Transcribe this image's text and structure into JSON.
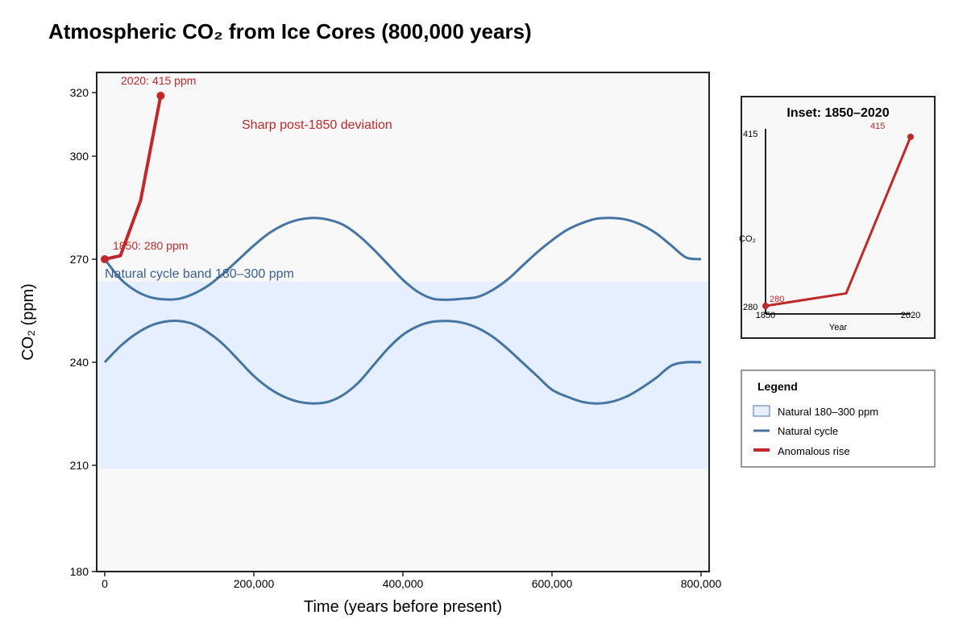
{
  "title": "Atmospheric CO₂ from Ice Cores (800,000 years)",
  "colors": {
    "band_fill": "#e6efff",
    "natural": "#4575a5",
    "anomaly": "#c0282a",
    "plot_bg": "#f8f8f8"
  },
  "chart_data": [
    {
      "type": "line",
      "xlabel": "Time (years before present)",
      "ylabel": "CO₂ (ppm)",
      "xlim": [
        0,
        800000
      ],
      "ylim": [
        180,
        325
      ],
      "x_ticks": [
        0,
        200000,
        400000,
        600000,
        800000
      ],
      "x_tick_labels": [
        "0",
        "200,000",
        "400,000",
        "600,000",
        "800,000"
      ],
      "y_ticks": [
        180,
        210,
        240,
        270,
        300,
        320
      ],
      "y_tick_labels": [
        "180",
        "210",
        "240",
        "270",
        "300",
        "320"
      ],
      "grid": false,
      "band": {
        "y0": 209,
        "y1": 263.5
      },
      "series": [
        {
          "x": [
            0,
            20000,
            40000,
            60000,
            80000,
            100000,
            120000,
            140000,
            160000,
            180000,
            200000,
            220000,
            240000,
            260000,
            280000,
            300000,
            320000,
            340000,
            360000,
            380000,
            400000,
            420000,
            440000,
            460000,
            480000,
            500000,
            520000,
            540000,
            560000,
            580000,
            600000,
            620000,
            640000,
            660000,
            680000,
            700000,
            720000,
            740000,
            760000,
            780000,
            800000
          ],
          "values": [
            270,
            264.5,
            261,
            259,
            258.3,
            258.5,
            260,
            262.5,
            266,
            270,
            274,
            277.5,
            280,
            281.5,
            282,
            281.5,
            280,
            277,
            273,
            268.5,
            264,
            260.5,
            258.5,
            258.2,
            258.5,
            259,
            261,
            264,
            268,
            272,
            275.5,
            278.5,
            280.5,
            281.8,
            282,
            281.5,
            280,
            277.5,
            274,
            270.5,
            270
          ]
        },
        {
          "x": [
            0,
            20000,
            40000,
            60000,
            80000,
            100000,
            120000,
            140000,
            160000,
            180000,
            200000,
            220000,
            240000,
            260000,
            280000,
            300000,
            320000,
            340000,
            360000,
            380000,
            400000,
            420000,
            440000,
            460000,
            480000,
            500000,
            520000,
            540000,
            560000,
            580000,
            600000,
            620000,
            640000,
            660000,
            680000,
            700000,
            720000,
            740000,
            760000,
            780000,
            800000
          ],
          "values": [
            240,
            244.5,
            248,
            250.5,
            251.8,
            252,
            251,
            248.5,
            245,
            240.5,
            236,
            232.5,
            230,
            228.5,
            228,
            228.5,
            230.5,
            234,
            239,
            244,
            248,
            250.5,
            251.8,
            252,
            251.5,
            250,
            247.5,
            244,
            240,
            236,
            232,
            230,
            228.5,
            228,
            228.5,
            230,
            232.5,
            235.5,
            239,
            240,
            240
          ]
        },
        {
          "x": [
            0,
            21000,
            48000,
            75000
          ],
          "values": [
            270,
            271,
            287,
            319
          ]
        }
      ],
      "annotations": [
        {
          "text": "2020: 415 ppm"
        },
        {
          "text": "1850: 280 ppm"
        },
        {
          "text": "Sharp post-1850 deviation"
        },
        {
          "text": "Natural cycle band 180–300 ppm"
        }
      ]
    },
    {
      "type": "line",
      "title": "Inset: 1850–2020",
      "xlabel": "Year",
      "ylabel": "CO₂",
      "xlim": [
        1850,
        2020
      ],
      "x_tick_labels": [
        "1850",
        "2020"
      ],
      "y_tick_labels": [
        "415",
        "280"
      ],
      "series": [
        {
          "x": [
            1850,
            1950,
            2030
          ],
          "values": [
            280,
            290,
            415
          ]
        }
      ],
      "point_labels": [
        "280",
        "415"
      ]
    }
  ],
  "legend": {
    "title": "Legend",
    "items": [
      {
        "label": "Natural 180–300 ppm"
      },
      {
        "label": "Natural cycle"
      },
      {
        "label": "Anomalous rise"
      }
    ]
  }
}
